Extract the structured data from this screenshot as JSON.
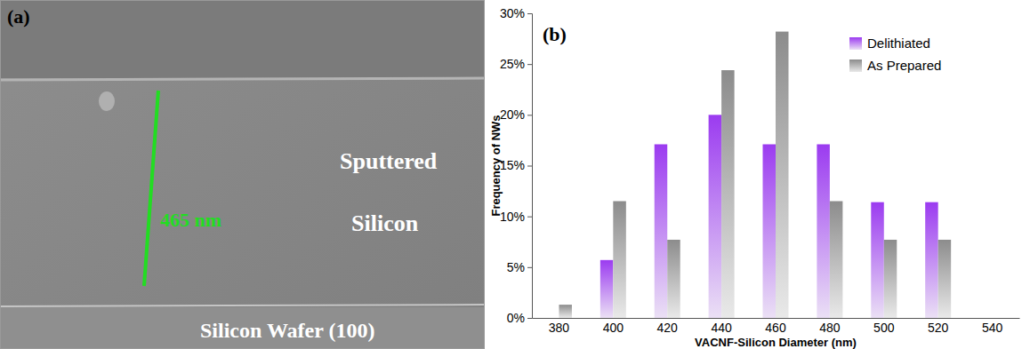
{
  "sem_image": {
    "panel_label": "(a)",
    "scale_bar_label": "465 nm",
    "layer_labels": [
      "Sputtered",
      "Silicon"
    ],
    "substrate_label": "Silicon Wafer (100)"
  },
  "chart_data": {
    "type": "bar",
    "title": "(b)",
    "x_label": "VACNF-Silicon Diameter (nm)",
    "y_label": "Frequency of NWs",
    "categories": [
      "380",
      "400",
      "420",
      "440",
      "460",
      "480",
      "500",
      "520",
      "540"
    ],
    "series": [
      {
        "name": "Delithiated",
        "color": "#9b3bf0",
        "values": [
          0,
          5.7,
          17.1,
          20,
          17.1,
          17.1,
          11.4,
          11.4,
          0
        ]
      },
      {
        "name": "As Prepared",
        "color": "#8c8c8c",
        "values": [
          1.3,
          11.5,
          7.7,
          24.4,
          28.2,
          11.5,
          7.7,
          7.7,
          0
        ]
      }
    ],
    "ylim": [
      0,
      30
    ],
    "yticks": [
      {
        "value": 0,
        "label": "0%"
      },
      {
        "value": 5,
        "label": "5%"
      },
      {
        "value": 10,
        "label": "10%"
      },
      {
        "value": 15,
        "label": "15%"
      },
      {
        "value": 20,
        "label": "20%"
      },
      {
        "value": 25,
        "label": "25%"
      },
      {
        "value": 30,
        "label": "30%"
      }
    ],
    "grid": false,
    "legend": "upper right"
  }
}
